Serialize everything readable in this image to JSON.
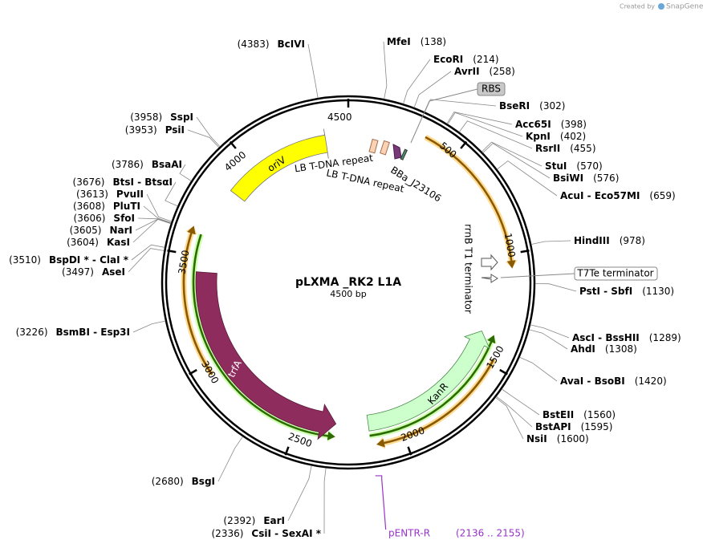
{
  "header": {
    "credit": "Created by",
    "brand": "SnapGene"
  },
  "map": {
    "title": "pLXMA _RK2 L1A",
    "size": "4500 bp",
    "ticks": [
      500,
      1000,
      1500,
      2000,
      2500,
      3000,
      3500,
      4000,
      4500
    ]
  },
  "features": {
    "oriV": "oriV",
    "lb1": "LB T-DNA repeat",
    "lb2": "LB T-DNA repeat",
    "promoter": "BBa_J23106",
    "terminator": "rrnB T1 terminator",
    "trfA": "trfA",
    "kanR": "KanR",
    "rbs": "RBS",
    "t7te": "T7Te terminator"
  },
  "primer": {
    "name": "pENTR-R",
    "range": "(2136 .. 2155)"
  },
  "enzymes": [
    {
      "name": "MfeI",
      "site": "(138)"
    },
    {
      "name": "EcoRI",
      "site": "(214)"
    },
    {
      "name": "AvrII",
      "site": "(258)"
    },
    {
      "name": "BseRI",
      "site": "(302)"
    },
    {
      "name": "Acc65I",
      "site": "(398)"
    },
    {
      "name": "KpnI",
      "site": "(402)"
    },
    {
      "name": "RsrII",
      "site": "(455)"
    },
    {
      "name": "StuI",
      "site": "(570)"
    },
    {
      "name": "BsiWI",
      "site": "(576)"
    },
    {
      "name": "AcuI - Eco57MI",
      "site": "(659)"
    },
    {
      "name": "HindIII",
      "site": "(978)"
    },
    {
      "name": "PstI - SbfI",
      "site": "(1130)"
    },
    {
      "name": "AscI - BssHII",
      "site": "(1289)"
    },
    {
      "name": "AhdI",
      "site": "(1308)"
    },
    {
      "name": "AvaI - BsoBI",
      "site": "(1420)"
    },
    {
      "name": "BstEII",
      "site": "(1560)"
    },
    {
      "name": "BstAPI",
      "site": "(1595)"
    },
    {
      "name": "NsiI",
      "site": "(1600)"
    },
    {
      "name": "CsiI - SexAI *",
      "site": "(2336)"
    },
    {
      "name": "EarI",
      "site": "(2392)"
    },
    {
      "name": "BsgI",
      "site": "(2680)"
    },
    {
      "name": "BsmBI - Esp3I",
      "site": "(3226)"
    },
    {
      "name": "AseI",
      "site": "(3497)"
    },
    {
      "name": "BspDI * - ClaI *",
      "site": "(3510)"
    },
    {
      "name": "KasI",
      "site": "(3604)"
    },
    {
      "name": "NarI",
      "site": "(3605)"
    },
    {
      "name": "SfoI",
      "site": "(3606)"
    },
    {
      "name": "PluTI",
      "site": "(3608)"
    },
    {
      "name": "PvuII",
      "site": "(3613)"
    },
    {
      "name": "BtsI - BtsαI",
      "site": "(3676)"
    },
    {
      "name": "BsaAI",
      "site": "(3786)"
    },
    {
      "name": "PsiI",
      "site": "(3953)"
    },
    {
      "name": "SspI",
      "site": "(3958)"
    },
    {
      "name": "BcIVI",
      "site": "(4383)"
    }
  ]
}
